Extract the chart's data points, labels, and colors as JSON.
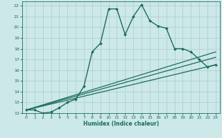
{
  "title": "",
  "xlabel": "Humidex (Indice chaleur)",
  "xlim": [
    -0.5,
    23.5
  ],
  "ylim": [
    12,
    22.4
  ],
  "yticks": [
    12,
    13,
    14,
    15,
    16,
    17,
    18,
    19,
    20,
    21,
    22
  ],
  "xticks": [
    0,
    1,
    2,
    3,
    4,
    5,
    6,
    7,
    8,
    9,
    10,
    11,
    12,
    13,
    14,
    15,
    16,
    17,
    18,
    19,
    20,
    21,
    22,
    23
  ],
  "bg_color": "#cce8e8",
  "grid_color": "#aacccc",
  "line_color": "#1a6b5a",
  "series": [
    {
      "x": [
        0,
        1,
        2,
        3,
        4,
        5,
        6,
        7,
        8,
        9,
        10,
        11,
        12,
        13,
        14,
        15,
        16,
        17,
        18,
        19,
        20,
        21,
        22,
        23
      ],
      "y": [
        12.3,
        12.3,
        12.0,
        12.1,
        12.5,
        13.0,
        13.3,
        14.5,
        17.7,
        18.5,
        21.7,
        21.7,
        19.3,
        21.0,
        22.1,
        20.6,
        20.1,
        19.9,
        18.0,
        18.0,
        17.7,
        17.0,
        16.3,
        16.5
      ],
      "marker": "D",
      "markersize": 2.0,
      "linewidth": 1.0
    },
    {
      "x": [
        0,
        23
      ],
      "y": [
        12.3,
        16.5
      ],
      "marker": null,
      "linewidth": 0.9
    },
    {
      "x": [
        0,
        23
      ],
      "y": [
        12.3,
        17.2
      ],
      "marker": null,
      "linewidth": 0.9
    },
    {
      "x": [
        0,
        23
      ],
      "y": [
        12.3,
        17.7
      ],
      "marker": null,
      "linewidth": 0.9
    }
  ]
}
